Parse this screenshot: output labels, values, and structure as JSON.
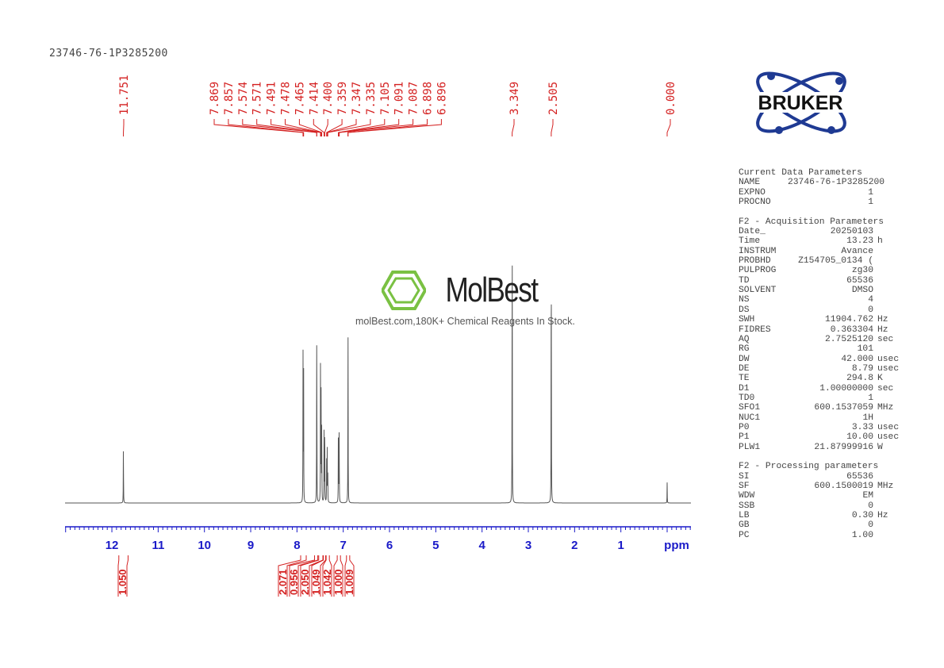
{
  "title": "23746-76-1P3285200",
  "chart_data": {
    "type": "line",
    "xlabel": "ppm",
    "xlim": [
      13.0,
      -0.5
    ],
    "x_ticks": [
      12,
      11,
      10,
      9,
      8,
      7,
      6,
      5,
      4,
      3,
      2,
      1
    ],
    "grid": false,
    "peaks": [
      {
        "ppm": 11.751,
        "intensity": 0.18
      },
      {
        "ppm": 7.869,
        "intensity": 0.43
      },
      {
        "ppm": 7.857,
        "intensity": 0.42
      },
      {
        "ppm": 7.574,
        "intensity": 0.32
      },
      {
        "ppm": 7.571,
        "intensity": 0.3
      },
      {
        "ppm": 7.491,
        "intensity": 0.44
      },
      {
        "ppm": 7.478,
        "intensity": 0.36
      },
      {
        "ppm": 7.465,
        "intensity": 0.25
      },
      {
        "ppm": 7.414,
        "intensity": 0.22
      },
      {
        "ppm": 7.4,
        "intensity": 0.28
      },
      {
        "ppm": 7.359,
        "intensity": 0.12
      },
      {
        "ppm": 7.347,
        "intensity": 0.17
      },
      {
        "ppm": 7.335,
        "intensity": 0.12
      },
      {
        "ppm": 7.105,
        "intensity": 0.22
      },
      {
        "ppm": 7.091,
        "intensity": 0.21
      },
      {
        "ppm": 7.087,
        "intensity": 0.12
      },
      {
        "ppm": 6.898,
        "intensity": 0.32
      },
      {
        "ppm": 6.896,
        "intensity": 0.28
      },
      {
        "ppm": 3.349,
        "intensity": 1.0
      },
      {
        "ppm": 2.505,
        "intensity": 0.95
      },
      {
        "ppm": 0.0,
        "intensity": 0.06
      }
    ],
    "peak_labels": [
      {
        "group": 1,
        "labels": [
          "11.751"
        ]
      },
      {
        "group": 2,
        "labels": [
          "7.869",
          "7.857",
          "7.574",
          "7.571",
          "7.491",
          "7.478",
          "7.465",
          "7.414",
          "7.400",
          "7.359",
          "7.347",
          "7.335",
          "7.105",
          "7.091",
          "7.087",
          "6.898",
          "6.896"
        ]
      },
      {
        "group": 3,
        "labels": [
          "3.349"
        ]
      },
      {
        "group": 4,
        "labels": [
          "2.505"
        ]
      },
      {
        "group": 5,
        "labels": [
          "0.000"
        ]
      }
    ],
    "integrals": [
      {
        "from": 11.85,
        "to": 11.65,
        "value": "1.050"
      },
      {
        "from": 7.92,
        "to": 7.8,
        "value": "2.071"
      },
      {
        "from": 7.62,
        "to": 7.55,
        "value": "0.956"
      },
      {
        "from": 7.53,
        "to": 7.44,
        "value": "2.050"
      },
      {
        "from": 7.43,
        "to": 7.38,
        "value": "1.049"
      },
      {
        "from": 7.37,
        "to": 7.3,
        "value": "1.042"
      },
      {
        "from": 7.13,
        "to": 7.06,
        "value": "1.000"
      },
      {
        "from": 6.93,
        "to": 6.86,
        "value": "1.009"
      }
    ],
    "colors": {
      "spectrum": "#555555",
      "axis": "#1a1ac8",
      "labels": "#d42020"
    }
  },
  "watermark": {
    "brand": "MolBest",
    "tagline": "molBest.com,180K+ Chemical Reagents In Stock.",
    "color": "#7ac143"
  },
  "logo": {
    "text": "BRUKER",
    "color": "#1f3a93"
  },
  "params": [
    {
      "header": "Current Data Parameters",
      "rows": [
        [
          "NAME",
          "23746-76-1P3285200",
          ""
        ],
        [
          "EXPNO",
          "1",
          ""
        ],
        [
          "PROCNO",
          "1",
          ""
        ]
      ]
    },
    {
      "header": "F2 - Acquisition Parameters",
      "rows": [
        [
          "Date_",
          "20250103",
          ""
        ],
        [
          "Time",
          "13.23",
          "h"
        ],
        [
          "INSTRUM",
          "Avance",
          ""
        ],
        [
          "PROBHD",
          "Z154705_0134 (",
          ""
        ],
        [
          "PULPROG",
          "zg30",
          ""
        ],
        [
          "TD",
          "65536",
          ""
        ],
        [
          "SOLVENT",
          "DMSO",
          ""
        ],
        [
          "NS",
          "4",
          ""
        ],
        [
          "DS",
          "0",
          ""
        ],
        [
          "SWH",
          "11904.762",
          "Hz"
        ],
        [
          "FIDRES",
          "0.363304",
          "Hz"
        ],
        [
          "AQ",
          "2.7525120",
          "sec"
        ],
        [
          "RG",
          "101",
          ""
        ],
        [
          "DW",
          "42.000",
          "usec"
        ],
        [
          "DE",
          "8.79",
          "usec"
        ],
        [
          "TE",
          "294.8",
          "K"
        ],
        [
          "D1",
          "1.00000000",
          "sec"
        ],
        [
          "TD0",
          "1",
          ""
        ],
        [
          "SFO1",
          "600.1537059",
          "MHz"
        ],
        [
          "NUC1",
          "1H",
          ""
        ],
        [
          "P0",
          "3.33",
          "usec"
        ],
        [
          "P1",
          "10.00",
          "usec"
        ],
        [
          "PLW1",
          "21.87999916",
          "W"
        ]
      ]
    },
    {
      "header": "F2 - Processing parameters",
      "rows": [
        [
          "SI",
          "65536",
          ""
        ],
        [
          "SF",
          "600.1500019",
          "MHz"
        ],
        [
          "WDW",
          "EM",
          ""
        ],
        [
          "SSB",
          "0",
          ""
        ],
        [
          "LB",
          "0.30",
          "Hz"
        ],
        [
          "GB",
          "0",
          ""
        ],
        [
          "PC",
          "1.00",
          ""
        ]
      ]
    }
  ]
}
